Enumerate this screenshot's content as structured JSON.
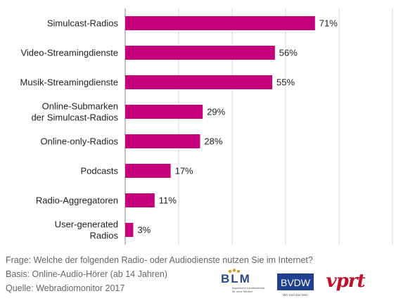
{
  "chart_data": {
    "type": "bar",
    "orientation": "horizontal",
    "categories": [
      [
        "Simulcast-Radios"
      ],
      [
        "Video-Streamingdienste"
      ],
      [
        "Musik-Streamingdienste"
      ],
      [
        "Online-Submarken",
        "der Simulcast-Radios"
      ],
      [
        "Online-only-Radios"
      ],
      [
        "Podcasts"
      ],
      [
        "Radio-Aggregatoren"
      ],
      [
        "User-generated",
        "Radios"
      ]
    ],
    "values": [
      71,
      56,
      55,
      29,
      28,
      17,
      11,
      3
    ],
    "value_labels": [
      "71%",
      "56%",
      "55%",
      "29%",
      "28%",
      "17%",
      "11%",
      "3%"
    ],
    "xlim": [
      0,
      100
    ],
    "grid": true,
    "bar_color": "#c5007a",
    "grid_color": "#d9d9d9",
    "axis_color": "#888888",
    "title": "",
    "xlabel": "",
    "ylabel": ""
  },
  "footer": {
    "question": "Frage: Welche der folgenden Radio- oder Audiodienste nutzen Sie im Internet?",
    "basis": "Basis: Online-Audio-Hörer (ab 14 Jahren)",
    "source": "Quelle: Webradiomonitor 2017"
  },
  "logos": {
    "blm": "BLM",
    "blm_sub1": "Bayerische Landeszentrale",
    "blm_sub2": "für neue Medien",
    "bvdw": "BVDW",
    "bvdw_sub": "Wir sind das Netz",
    "vprt": "vprt",
    "blm_color": "#2b4a8a",
    "bvdw_color": "#1f3f8f",
    "vprt_color": "#c0102a"
  }
}
